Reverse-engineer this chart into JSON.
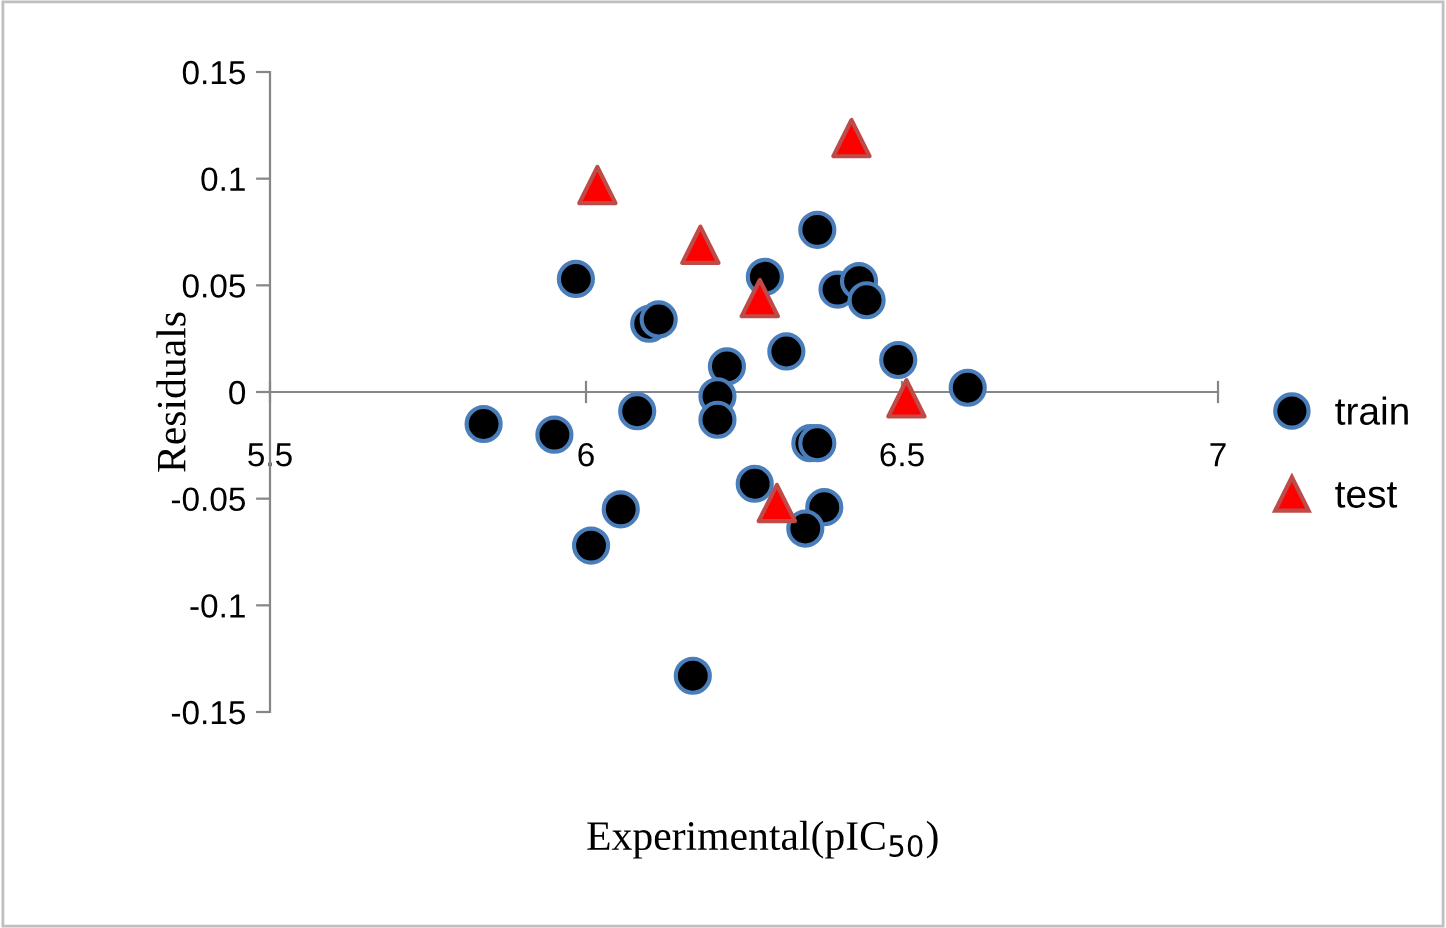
{
  "chart_data": {
    "type": "scatter",
    "xlabel": "Experimental(pIC$_{50}$)",
    "ylabel": "Residuals",
    "xlim": [
      5.5,
      7
    ],
    "xticks": [
      5.5,
      6,
      6.5,
      7
    ],
    "ylim": [
      -0.15,
      0.15
    ],
    "yticks": [
      -0.15,
      -0.1,
      -0.05,
      0,
      0.05,
      0.1,
      0.15
    ],
    "grid": false,
    "legend": "right",
    "series": [
      {
        "name": "train",
        "color": "#000000",
        "marker": "circle",
        "x": [
          5.984,
          6.1,
          6.115,
          6.283,
          6.366,
          6.398,
          6.432,
          6.444,
          6.223,
          6.317,
          6.494,
          6.604,
          5.838,
          5.95,
          6.081,
          6.208,
          6.208,
          6.355,
          6.366,
          6.267,
          6.377,
          6.347,
          6.055,
          6.008,
          6.169
        ],
        "values": [
          0.053,
          0.032,
          0.034,
          0.054,
          0.076,
          0.048,
          0.052,
          0.043,
          0.012,
          0.019,
          0.015,
          0.002,
          -0.015,
          -0.02,
          -0.009,
          -0.002,
          -0.013,
          -0.024,
          -0.024,
          -0.043,
          -0.054,
          -0.064,
          -0.055,
          -0.072,
          -0.133
        ]
      },
      {
        "name": "test",
        "color": "#ff0000",
        "marker": "triangle",
        "x": [
          6.018,
          6.181,
          6.275,
          6.42,
          6.507,
          6.302
        ],
        "values": [
          0.097,
          0.069,
          0.044,
          0.119,
          -0.003,
          -0.052
        ]
      }
    ]
  }
}
